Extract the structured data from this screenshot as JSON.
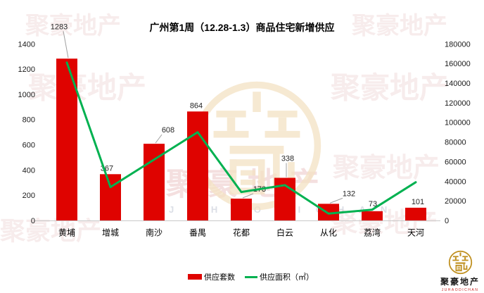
{
  "title": "广州第1周（12.28-1.3）商品住宅新增供应",
  "chart_data": {
    "type": "bar",
    "categories": [
      "黄埔",
      "增城",
      "南沙",
      "番禺",
      "花都",
      "白云",
      "从化",
      "荔湾",
      "天河"
    ],
    "series": [
      {
        "name": "供应套数",
        "type": "bar",
        "axis": "left",
        "color": "#df0300",
        "values": [
          1283,
          367,
          608,
          864,
          173,
          338,
          132,
          73,
          101
        ]
      },
      {
        "name": "供应面积（㎡）",
        "type": "line",
        "axis": "right",
        "color": "#00b150",
        "values_estimated": true,
        "values": [
          161000,
          34000,
          62000,
          90000,
          29000,
          36000,
          7000,
          11000,
          39000
        ]
      }
    ],
    "data_labels": [
      "1283",
      "367",
      "608",
      "864",
      "173",
      "338",
      "132",
      "73",
      "101"
    ],
    "left_axis": {
      "min": 0,
      "max": 1400,
      "step": 200
    },
    "right_axis": {
      "min": 0,
      "max": 180000,
      "step": 20000
    },
    "grid": false,
    "legend_position": "bottom"
  },
  "legend": {
    "bar_label": "供应套数",
    "line_label": "供应面积（㎡）"
  },
  "watermark": {
    "text": "聚豪地产",
    "latin": "J U H A O D I C H A N"
  },
  "logo": {
    "name": "聚豪地产",
    "latin": "JUHAODICHAN"
  }
}
